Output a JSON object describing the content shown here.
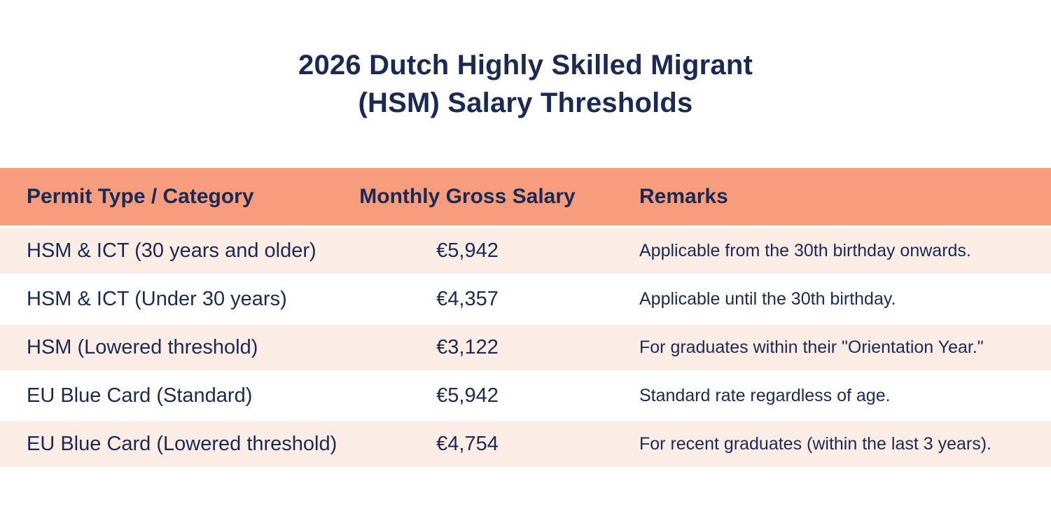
{
  "title": {
    "line1": "2026 Dutch Highly Skilled Migrant",
    "line2": "(HSM) Salary Thresholds"
  },
  "table": {
    "columns": {
      "category": "Permit Type / Category",
      "salary": "Monthly Gross Salary",
      "remarks": "Remarks"
    },
    "rows": [
      {
        "category": "HSM & ICT (30 years and older)",
        "salary": "€5,942",
        "remark": "Applicable from the 30th birthday onwards."
      },
      {
        "category": "HSM & ICT (Under 30 years)",
        "salary": "€4,357",
        "remark": "Applicable until the 30th birthday."
      },
      {
        "category": "HSM (Lowered threshold)",
        "salary": "€3,122",
        "remark": "For graduates within their \"Orientation Year.\""
      },
      {
        "category": "EU Blue Card (Standard)",
        "salary": "€5,942",
        "remark": "Standard rate regardless of age."
      },
      {
        "category": "EU Blue Card (Lowered threshold)",
        "salary": "€4,754",
        "remark": "For recent graduates (within the last 3 years)."
      }
    ]
  },
  "chart_data": {
    "type": "table",
    "title": "2026 Dutch Highly Skilled Migrant (HSM) Salary Thresholds",
    "columns": [
      "Permit Type / Category",
      "Monthly Gross Salary",
      "Remarks"
    ],
    "categories": [
      "HSM & ICT (30 years and older)",
      "HSM & ICT (Under 30 years)",
      "HSM (Lowered threshold)",
      "EU Blue Card (Standard)",
      "EU Blue Card (Lowered threshold)"
    ],
    "values": [
      5942,
      4357,
      3122,
      5942,
      4754
    ],
    "currency": "EUR",
    "remarks": [
      "Applicable from the 30th birthday onwards.",
      "Applicable until the 30th birthday.",
      "For graduates within their \"Orientation Year.\"",
      "Standard rate regardless of age.",
      "For recent graduates (within the last 3 years)."
    ]
  },
  "colors": {
    "header_bg": "#f89c7e",
    "row_alt_bg": "#fbece6",
    "row_plain_bg": "#ffffff",
    "text": "#1b2a52",
    "page_bg": "#ffffff"
  }
}
